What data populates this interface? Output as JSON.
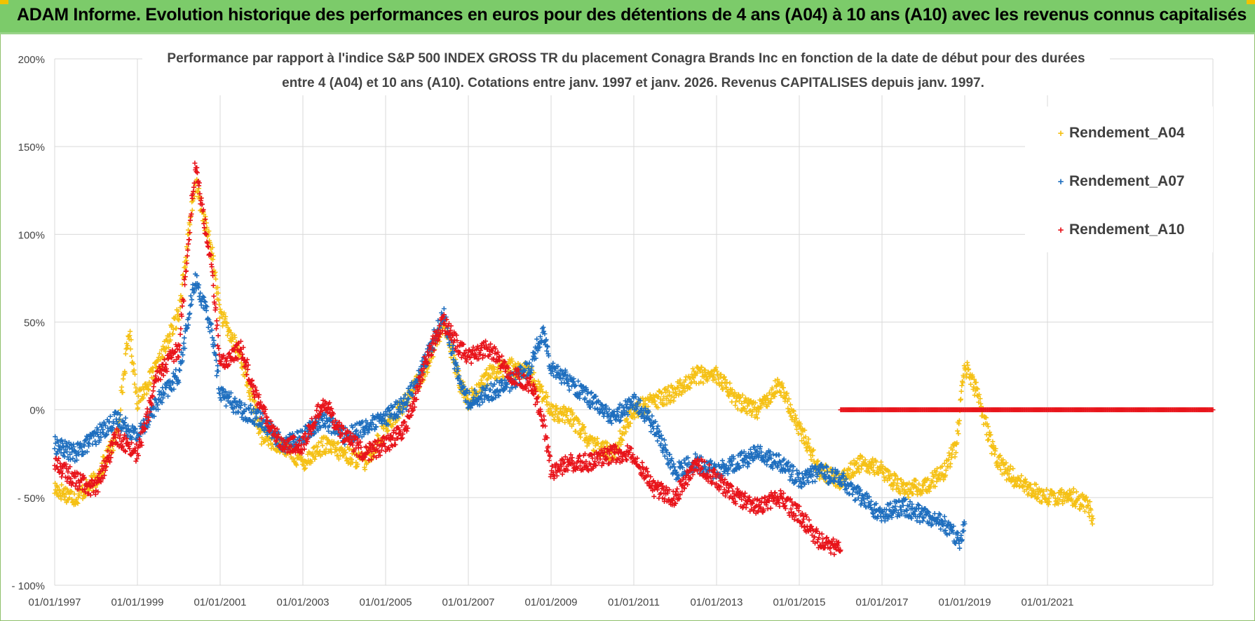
{
  "header": {
    "title": "ADAM Informe. Evolution historique des performances en euros pour des détentions de 4 ans (A04) à 10 ans (A10) avec les revenus connus capitalisés"
  },
  "chart_data": {
    "type": "scatter",
    "title_line1": "Performance par rapport à l'indice S&P 500 INDEX GROSS TR  du placement Conagra Brands Inc en fonction de la date de début pour des durées",
    "title_line2": "entre 4 (A04) et 10 ans (A10).  Cotations entre janv. 1997 et janv. 2026. Revenus CAPITALISES depuis janv. 1997.",
    "x_range": [
      1997.0,
      2025.0
    ],
    "ylim": [
      -100,
      200
    ],
    "x_ticks": [
      1997,
      1999,
      2001,
      2003,
      2005,
      2007,
      2009,
      2011,
      2013,
      2015,
      2017,
      2019,
      2021
    ],
    "x_tick_labels": [
      "01/01/1997",
      "01/01/1999",
      "01/01/2001",
      "01/01/2003",
      "01/01/2005",
      "01/01/2007",
      "01/01/2009",
      "01/01/2011",
      "01/01/2013",
      "01/01/2015",
      "01/01/2017",
      "01/01/2019",
      "01/01/2021"
    ],
    "y_ticks": [
      200,
      150,
      100,
      50,
      0,
      -50,
      -100
    ],
    "y_tick_labels": [
      "200%",
      "150%",
      "100%",
      "50%",
      "0%",
      "- 50%",
      "- 100%"
    ],
    "marker": "+",
    "legend_position": "top-right",
    "series": [
      {
        "name": "Rendement_A04",
        "color": "#f5c116",
        "x": [
          1997.0,
          1997.5,
          1998.0,
          1998.5,
          1998.8,
          1999.0,
          1999.5,
          2000.0,
          2000.4,
          2000.8,
          2001.0,
          2001.5,
          2002.0,
          2002.5,
          2003.0,
          2003.5,
          2004.0,
          2004.5,
          2005.0,
          2005.5,
          2006.0,
          2006.4,
          2006.8,
          2007.0,
          2007.5,
          2008.0,
          2008.5,
          2009.0,
          2009.5,
          2010.0,
          2010.5,
          2011.0,
          2011.5,
          2012.0,
          2012.5,
          2013.0,
          2013.5,
          2014.0,
          2014.5,
          2015.0,
          2015.5,
          2016.0,
          2016.5,
          2017.0,
          2017.5,
          2018.0,
          2018.5,
          2018.8,
          2019.0,
          2019.3,
          2019.7,
          2020.0,
          2020.5,
          2021.0,
          2021.5,
          2022.0,
          2022.1
        ],
        "y": [
          -45,
          -50,
          -40,
          -15,
          45,
          5,
          25,
          55,
          130,
          90,
          55,
          30,
          -15,
          -20,
          -30,
          -20,
          -25,
          -30,
          -10,
          5,
          25,
          50,
          15,
          5,
          20,
          25,
          20,
          0,
          -5,
          -20,
          -25,
          0,
          5,
          10,
          20,
          20,
          5,
          0,
          15,
          -10,
          -35,
          -40,
          -30,
          -35,
          -45,
          -45,
          -35,
          -20,
          25,
          10,
          -25,
          -35,
          -45,
          -50,
          -48,
          -55,
          -62
        ]
      },
      {
        "name": "Rendement_A07",
        "color": "#1f6fbf",
        "x": [
          1997.0,
          1997.5,
          1998.0,
          1998.5,
          1999.0,
          1999.5,
          2000.0,
          2000.4,
          2000.8,
          2001.0,
          2001.5,
          2002.0,
          2002.5,
          2003.0,
          2003.5,
          2004.0,
          2004.5,
          2005.0,
          2005.5,
          2006.0,
          2006.4,
          2006.8,
          2007.0,
          2007.5,
          2008.0,
          2008.5,
          2008.8,
          2009.0,
          2009.5,
          2010.0,
          2010.5,
          2011.0,
          2011.5,
          2012.0,
          2012.5,
          2013.0,
          2013.5,
          2014.0,
          2014.5,
          2015.0,
          2015.5,
          2016.0,
          2016.5,
          2017.0,
          2017.5,
          2018.0,
          2018.5,
          2018.9,
          2019.0
        ],
        "y": [
          -20,
          -25,
          -15,
          -5,
          -15,
          5,
          20,
          75,
          45,
          10,
          0,
          -5,
          -20,
          -15,
          -5,
          -15,
          -10,
          -5,
          5,
          30,
          55,
          15,
          5,
          10,
          15,
          25,
          45,
          25,
          15,
          5,
          -5,
          5,
          -10,
          -35,
          -30,
          -35,
          -30,
          -25,
          -30,
          -40,
          -35,
          -40,
          -50,
          -60,
          -55,
          -60,
          -65,
          -75,
          -65
        ]
      },
      {
        "name": "Rendement_A10",
        "color": "#e8141b",
        "x": [
          1997.0,
          1997.5,
          1998.0,
          1998.5,
          1999.0,
          1999.5,
          2000.0,
          2000.4,
          2000.8,
          2001.0,
          2001.5,
          2002.0,
          2002.5,
          2003.0,
          2003.5,
          2004.0,
          2004.5,
          2005.0,
          2005.5,
          2006.0,
          2006.4,
          2006.8,
          2007.0,
          2007.5,
          2008.0,
          2008.5,
          2008.8,
          2009.0,
          2009.5,
          2010.0,
          2010.5,
          2011.0,
          2011.5,
          2012.0,
          2012.5,
          2013.0,
          2013.5,
          2014.0,
          2014.5,
          2015.0,
          2015.5,
          2016.0
        ],
        "y": [
          -30,
          -40,
          -45,
          -15,
          -25,
          20,
          35,
          140,
          80,
          25,
          35,
          0,
          -20,
          -20,
          5,
          -15,
          -25,
          -20,
          -10,
          30,
          50,
          35,
          30,
          35,
          20,
          15,
          -5,
          -35,
          -30,
          -30,
          -25,
          -25,
          -45,
          -50,
          -30,
          -40,
          -50,
          -55,
          -50,
          -60,
          -75,
          -80
        ]
      },
      {
        "name": "Rendement_A10_flat",
        "legend": false,
        "color": "#e8141b",
        "x": [
          2016.0,
          2025.0
        ],
        "y": [
          0,
          0
        ]
      }
    ],
    "legend": [
      "Rendement_A04",
      "Rendement_A07",
      "Rendement_A10"
    ]
  }
}
